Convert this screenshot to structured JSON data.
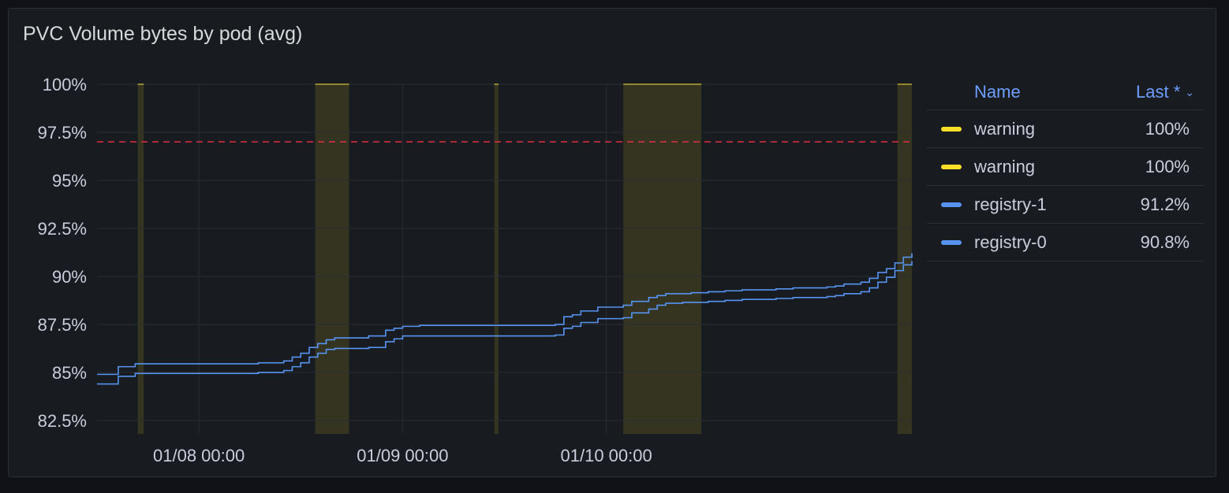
{
  "panel": {
    "title": "PVC Volume bytes by pod (avg)"
  },
  "legend": {
    "name_header": "Name",
    "last_header": "Last *",
    "rows": [
      {
        "name": "warning",
        "value": "100%",
        "color": "#fade2a"
      },
      {
        "name": "warning",
        "value": "100%",
        "color": "#fade2a"
      },
      {
        "name": "registry-1",
        "value": "91.2%",
        "color": "#5794f2"
      },
      {
        "name": "registry-0",
        "value": "90.8%",
        "color": "#5794f2"
      }
    ]
  },
  "chart_data": {
    "type": "line",
    "x_tick_labels": [
      "01/08 00:00",
      "01/09 00:00",
      "01/10 00:00"
    ],
    "y_tick_labels": [
      "100%",
      "97.5%",
      "95%",
      "92.5%",
      "90%",
      "87.5%",
      "85%",
      "82.5%"
    ],
    "ylim": [
      81.8,
      100
    ],
    "xlim_hours": [
      -12,
      84
    ],
    "threshold": {
      "value": 97,
      "style": "dashed",
      "color": "#e02f44"
    },
    "warning_regions_hours": [
      [
        -7.2,
        -6.5
      ],
      [
        13.7,
        17.7
      ],
      [
        34.8,
        35.3
      ],
      [
        50,
        59.2
      ],
      [
        82.3,
        87
      ]
    ],
    "warning_color": "#fade2a",
    "series": [
      {
        "name": "registry-1",
        "color": "#5794f2",
        "x": [
          -12,
          -11,
          -9.5,
          -7.5,
          4,
          7,
          9,
          10,
          11,
          12,
          13,
          14,
          15,
          16,
          18,
          20,
          22,
          23,
          24,
          26,
          28,
          32,
          34,
          36,
          38,
          40,
          42,
          43,
          44,
          45,
          47,
          50,
          51,
          53,
          54,
          55,
          57,
          58,
          60,
          62,
          64,
          66,
          68,
          70,
          72,
          74,
          75,
          76,
          78,
          79,
          80,
          81,
          82,
          83,
          84
        ],
        "y": [
          84.9,
          84.9,
          85.3,
          85.45,
          85.45,
          85.5,
          85.5,
          85.6,
          85.8,
          86.0,
          86.3,
          86.5,
          86.7,
          86.8,
          86.8,
          86.9,
          87.2,
          87.3,
          87.4,
          87.45,
          87.45,
          87.45,
          87.45,
          87.45,
          87.45,
          87.45,
          87.5,
          87.9,
          88.0,
          88.2,
          88.4,
          88.5,
          88.7,
          88.9,
          89.0,
          89.1,
          89.1,
          89.15,
          89.2,
          89.25,
          89.3,
          89.3,
          89.35,
          89.4,
          89.4,
          89.45,
          89.5,
          89.6,
          89.7,
          89.9,
          90.2,
          90.4,
          90.7,
          91.0,
          91.2
        ]
      },
      {
        "name": "registry-0",
        "color": "#5794f2",
        "x": [
          -12,
          -11,
          -9.5,
          -7.5,
          4,
          7,
          9,
          10,
          11,
          12,
          13,
          14,
          15,
          16,
          18,
          20,
          22,
          23,
          24,
          26,
          28,
          32,
          34,
          36,
          38,
          40,
          42,
          43,
          44,
          45,
          47,
          50,
          51,
          53,
          54,
          55,
          57,
          58,
          60,
          62,
          64,
          66,
          68,
          70,
          72,
          74,
          75,
          76,
          78,
          79,
          80,
          81,
          82,
          83,
          84
        ],
        "y": [
          84.4,
          84.4,
          84.8,
          84.95,
          84.95,
          85.0,
          85.0,
          85.1,
          85.3,
          85.5,
          85.8,
          86.0,
          86.2,
          86.25,
          86.25,
          86.3,
          86.6,
          86.75,
          86.9,
          86.9,
          86.9,
          86.9,
          86.9,
          86.9,
          86.9,
          86.9,
          86.95,
          87.3,
          87.4,
          87.6,
          87.8,
          87.85,
          88.1,
          88.3,
          88.5,
          88.6,
          88.65,
          88.65,
          88.7,
          88.75,
          88.8,
          88.8,
          88.85,
          88.9,
          88.9,
          88.95,
          89.0,
          89.1,
          89.2,
          89.4,
          89.7,
          89.95,
          90.3,
          90.6,
          90.8
        ]
      }
    ]
  }
}
